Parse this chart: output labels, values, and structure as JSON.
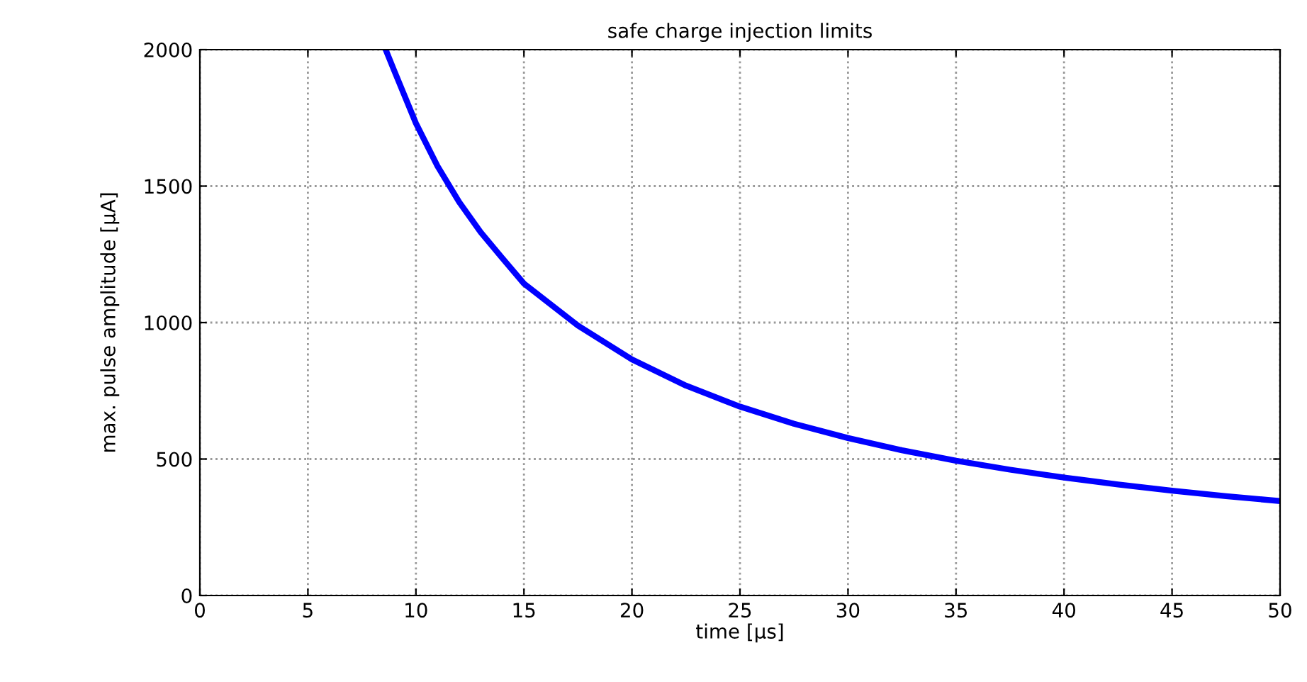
{
  "chart_data": {
    "type": "line",
    "title": "safe charge injection limits",
    "xlabel": "time [µs]",
    "ylabel": "max. pulse amplitude [µA]",
    "x": [
      8.6,
      9,
      10,
      11,
      12,
      13,
      14,
      15,
      17.5,
      20,
      22.5,
      25,
      27.5,
      30,
      32.5,
      35,
      37.5,
      40,
      42.5,
      45,
      47.5,
      50
    ],
    "series": [
      {
        "color": "#0000ff",
        "values": [
          2000,
          1922,
          1730,
          1573,
          1442,
          1331,
          1236,
          1143,
          989,
          865,
          769,
          692,
          629,
          577,
          532,
          494,
          461,
          432,
          407,
          384,
          364,
          346
        ]
      }
    ],
    "xlim": [
      0,
      50
    ],
    "xticks": [
      0,
      5,
      10,
      15,
      20,
      25,
      30,
      35,
      40,
      45,
      50
    ],
    "ylim": [
      0,
      2000
    ],
    "yticks": [
      0,
      500,
      1000,
      1500,
      2000
    ],
    "grid": true,
    "line_style": "solid",
    "marker": "none"
  }
}
